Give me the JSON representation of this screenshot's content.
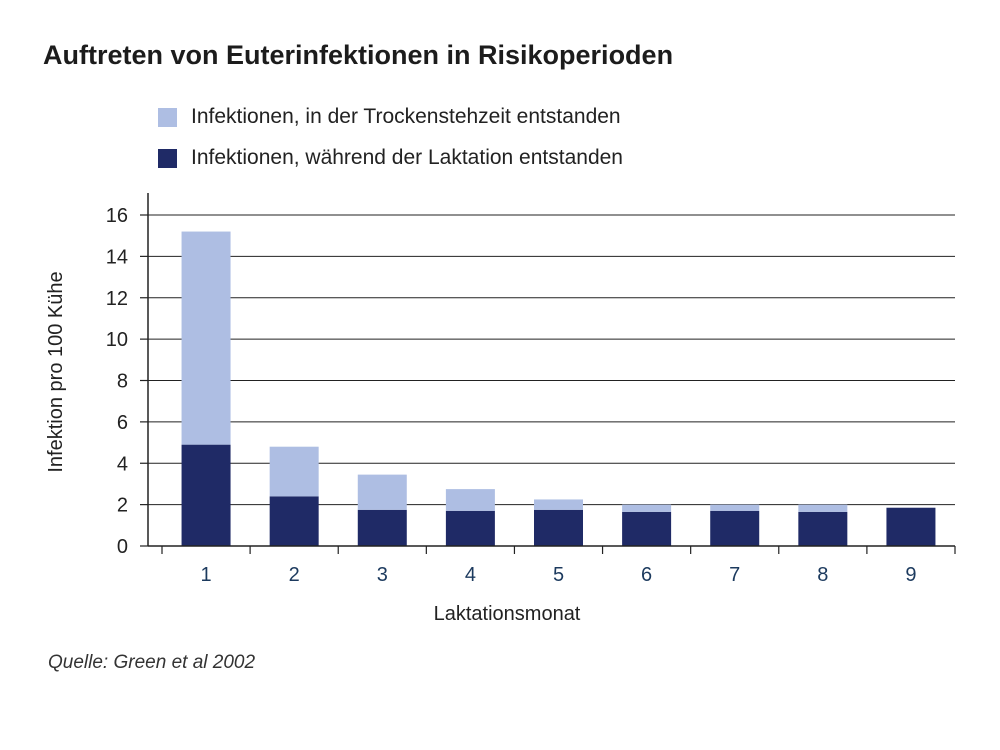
{
  "title": "Auftreten von Euterinfektionen in Risikoperioden",
  "source": "Quelle: Green et al 2002",
  "colors": {
    "trockenstehzeit": "#aebee3",
    "laktation": "#1f2a66",
    "grid": "#222222"
  },
  "legend": [
    {
      "label": "Infektionen, in der Trockenstehzeit entstanden",
      "color": "#aebee3"
    },
    {
      "label": "Infektionen, während der Laktation entstanden",
      "color": "#1f2a66"
    }
  ],
  "chart_data": {
    "type": "bar",
    "stacked": true,
    "title": "Auftreten von Euterinfektionen in Risikoperioden",
    "xlabel": "Laktationsmonat",
    "ylabel": "Infektion pro 100 Kühe",
    "ylim": [
      0,
      16
    ],
    "yticks": [
      0,
      2,
      4,
      6,
      8,
      10,
      12,
      14,
      16
    ],
    "grid": true,
    "legend_position": "top",
    "categories": [
      "1",
      "2",
      "3",
      "4",
      "5",
      "6",
      "7",
      "8",
      "9"
    ],
    "series": [
      {
        "name": "Infektionen, während der Laktation entstanden",
        "values": [
          4.9,
          2.4,
          1.75,
          1.7,
          1.75,
          1.65,
          1.7,
          1.65,
          1.85
        ]
      },
      {
        "name": "Infektionen, in der Trockenstehzeit entstanden",
        "values": [
          10.3,
          2.4,
          1.7,
          1.05,
          0.5,
          0.35,
          0.3,
          0.35,
          0.0
        ]
      }
    ]
  }
}
